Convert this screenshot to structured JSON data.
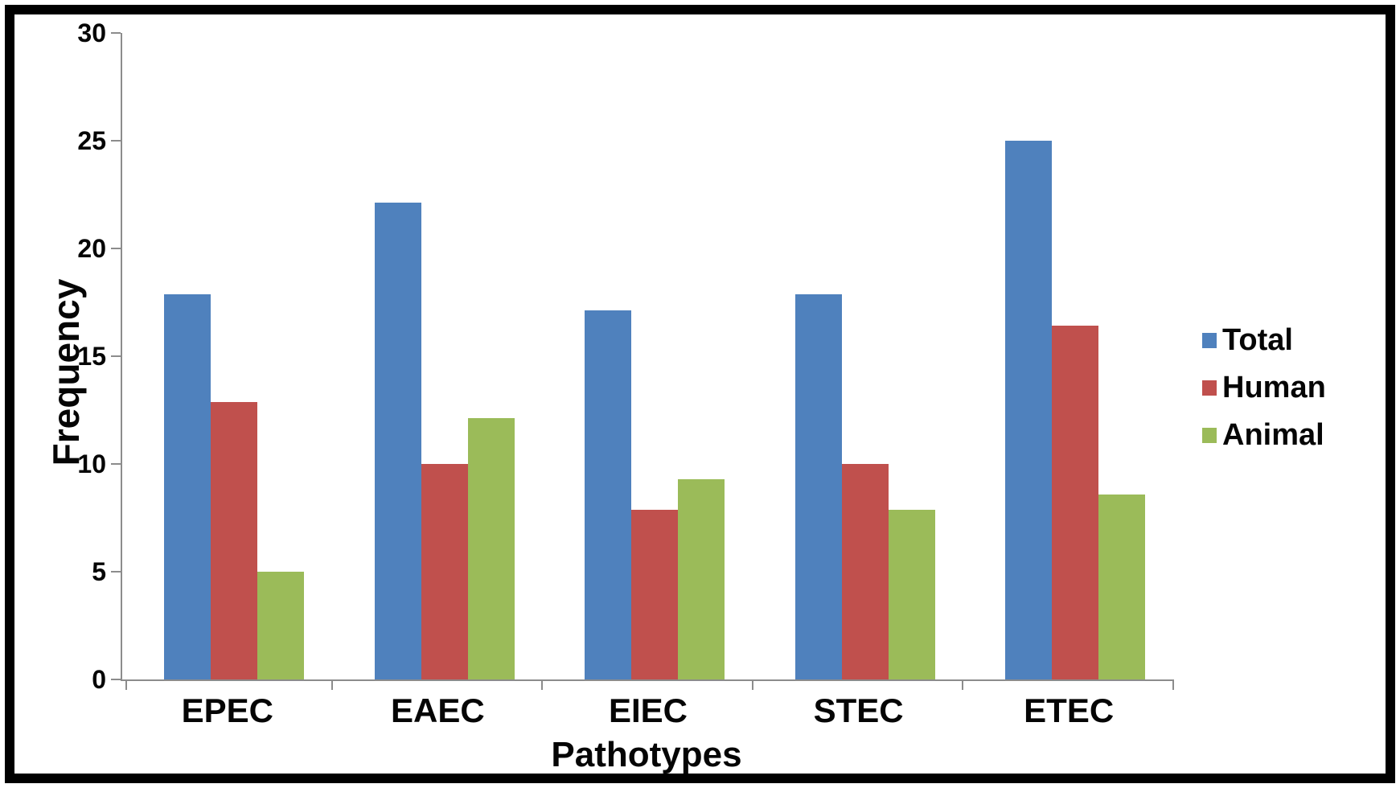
{
  "chart_data": {
    "type": "bar",
    "title": "",
    "categories": [
      "EPEC",
      "EAEC",
      "EIEC",
      "STEC",
      "ETEC"
    ],
    "series": [
      {
        "name": "Total",
        "color": "#4F81BD",
        "values": [
          17.86,
          22.14,
          17.14,
          17.86,
          25.0
        ]
      },
      {
        "name": "Human",
        "color": "#C0504D",
        "values": [
          12.86,
          10.0,
          7.86,
          10.0,
          16.43
        ]
      },
      {
        "name": "Animal",
        "color": "#9BBB59",
        "values": [
          5.0,
          12.14,
          9.29,
          7.86,
          8.57
        ]
      }
    ],
    "xlabel": "Pathotypes",
    "ylabel": "Frequency",
    "ylim": [
      0,
      30
    ],
    "yticks": [
      0,
      5,
      10,
      15,
      20,
      25,
      30
    ],
    "grid": false,
    "legend_position": "right",
    "legend_entries": [
      "Total",
      "Human",
      "Animal"
    ],
    "colors": {
      "axis": "#8C8C8C",
      "text": "#050505",
      "frame_border": "#000000",
      "background": "#FFFFFF"
    }
  }
}
